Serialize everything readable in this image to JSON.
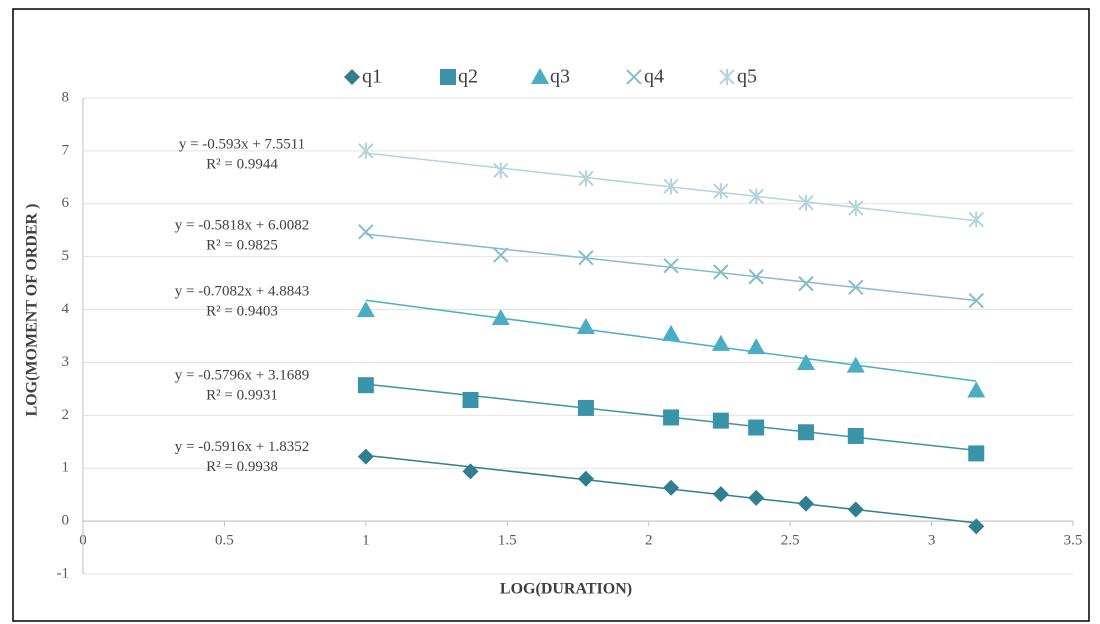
{
  "chart_data": {
    "type": "scatter",
    "xlabel": "LOG(DURATION)",
    "ylabel": "LOG(MOMENT OF ORDER )",
    "xlim": [
      0,
      3.5
    ],
    "xticks": [
      0,
      0.5,
      1,
      1.5,
      2,
      2.5,
      3,
      3.5
    ],
    "ylim": [
      -1,
      8
    ],
    "yticks": [
      -1,
      0,
      1,
      2,
      3,
      4,
      5,
      6,
      7,
      8
    ],
    "grid": true,
    "legend": "top",
    "series": [
      {
        "name": "q1",
        "color": "#2f7f8f",
        "marker": "diamond",
        "x": [
          1,
          1.37,
          1.778,
          2.079,
          2.255,
          2.38,
          2.556,
          2.732,
          3.158
        ],
        "values": [
          1.22,
          0.94,
          0.8,
          0.63,
          0.51,
          0.44,
          0.33,
          0.22,
          -0.1
        ],
        "trendline": {
          "slope": -0.5916,
          "intercept": 1.8352,
          "equation": "y = -0.5916x + 1.8352",
          "r2": "R² = 0.9938"
        }
      },
      {
        "name": "q2",
        "color": "#3a94a9",
        "marker": "square",
        "x": [
          1,
          1.37,
          1.778,
          2.079,
          2.255,
          2.38,
          2.556,
          2.732,
          3.158
        ],
        "values": [
          2.57,
          2.29,
          2.14,
          1.96,
          1.9,
          1.77,
          1.68,
          1.61,
          1.28
        ],
        "trendline": {
          "slope": -0.5796,
          "intercept": 3.1689,
          "equation": "y = -0.5796x + 3.1689",
          "r2": "R² = 0.9931"
        }
      },
      {
        "name": "q3",
        "color": "#4bacc6",
        "marker": "triangle",
        "x": [
          1,
          1.477,
          1.778,
          2.079,
          2.255,
          2.38,
          2.556,
          2.732,
          3.158
        ],
        "values": [
          3.99,
          3.84,
          3.67,
          3.54,
          3.35,
          3.29,
          2.99,
          2.94,
          2.47
        ],
        "trendline": {
          "slope": -0.7082,
          "intercept": 4.8843,
          "equation": "y = -0.7082x + 4.8843",
          "r2": "R² = 0.9403"
        }
      },
      {
        "name": "q4",
        "color": "#86bccd",
        "marker": "x",
        "x": [
          1,
          1.477,
          1.778,
          2.079,
          2.255,
          2.38,
          2.556,
          2.732,
          3.158
        ],
        "values": [
          5.47,
          5.03,
          4.98,
          4.83,
          4.71,
          4.62,
          4.49,
          4.42,
          4.17
        ],
        "trendline": {
          "slope": -0.5818,
          "intercept": 6.0082,
          "equation": "y = -0.5818x + 6.0082",
          "r2": "R² = 0.9825"
        }
      },
      {
        "name": "q5",
        "color": "#b3d3df",
        "marker": "asterisk",
        "x": [
          1,
          1.477,
          1.778,
          2.079,
          2.255,
          2.38,
          2.556,
          2.732,
          3.158
        ],
        "values": [
          7.0,
          6.63,
          6.48,
          6.33,
          6.24,
          6.14,
          6.02,
          5.92,
          5.7
        ],
        "trendline": {
          "slope": -0.593,
          "intercept": 7.5511,
          "equation": "y = -0.593x + 7.5511",
          "r2": "R² = 0.9944"
        }
      }
    ]
  }
}
